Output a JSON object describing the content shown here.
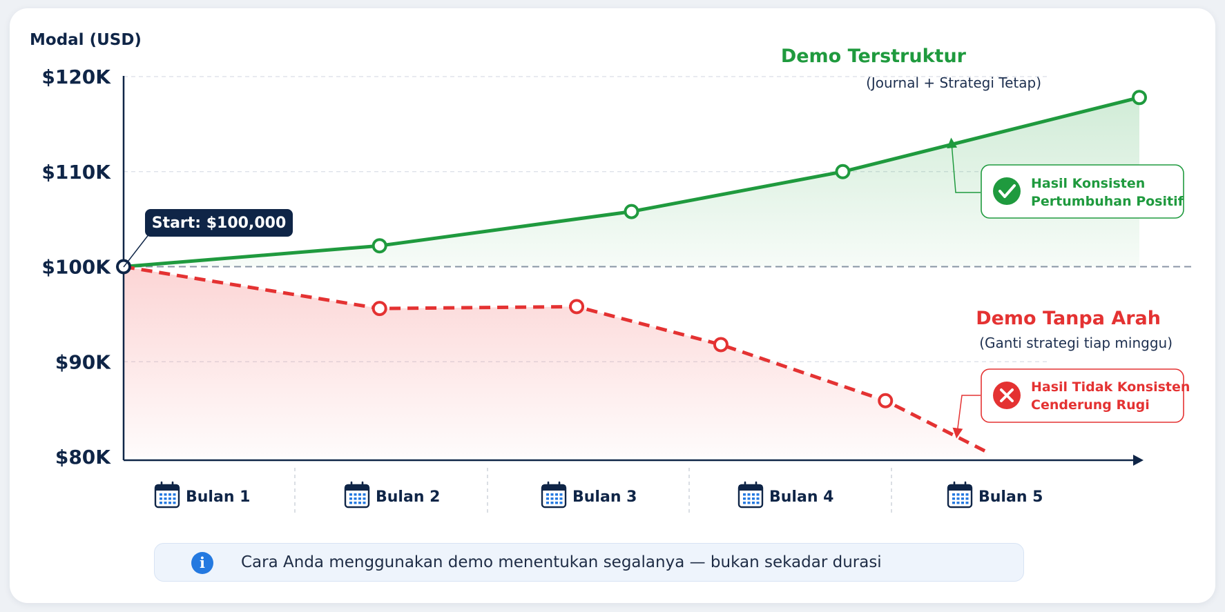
{
  "chart_data": {
    "type": "line",
    "ylabel": "Modal (USD)",
    "ylim": [
      80000,
      120000
    ],
    "yticks": [
      {
        "value": 120000,
        "label": "$120K"
      },
      {
        "value": 110000,
        "label": "$110K"
      },
      {
        "value": 100000,
        "label": "$100K"
      },
      {
        "value": 90000,
        "label": "$90K"
      },
      {
        "value": 80000,
        "label": "$80K"
      }
    ],
    "xlim": [
      0,
      5
    ],
    "categories": [
      "Bulan 1",
      "Bulan 2",
      "Bulan 3",
      "Bulan 4",
      "Bulan 5"
    ],
    "series": [
      {
        "name": "Demo Terstruktur",
        "subtitle": "(Journal + Strategi Tetap)",
        "color": "#1f9a3e",
        "style": "solid",
        "x": [
          0,
          1.26,
          2.5,
          3.54,
          5.0
        ],
        "y": [
          100000,
          102200,
          105800,
          110000,
          117800
        ],
        "callout": {
          "lines": [
            "Hasil Konsisten",
            "Pertumbuhan Positif"
          ],
          "icon": "check-icon"
        }
      },
      {
        "name": "Demo Tanpa Arah",
        "subtitle": "(Ganti strategi tiap minggu)",
        "color": "#e43232",
        "style": "dashed",
        "x": [
          0,
          1.26,
          2.23,
          2.94,
          3.75,
          4.25
        ],
        "y": [
          100000,
          95600,
          95800,
          91800,
          85900,
          80500
        ],
        "markers": [
          0,
          1,
          2,
          3,
          4
        ],
        "callout": {
          "lines": [
            "Hasil Tidak Konsisten",
            "Cenderung Rugi"
          ],
          "icon": "x-icon"
        }
      }
    ],
    "start_label": "Start: $100,000",
    "baseline": 100000,
    "grid": true
  },
  "footer": {
    "icon": "info-icon",
    "text": "Cara Anda menggunakan demo menentukan segalanya — bukan sekadar durasi"
  },
  "colors": {
    "green": "#1f9a3e",
    "red": "#e43232",
    "navy": "#0f2547",
    "calendar_blue": "#2479e0"
  }
}
